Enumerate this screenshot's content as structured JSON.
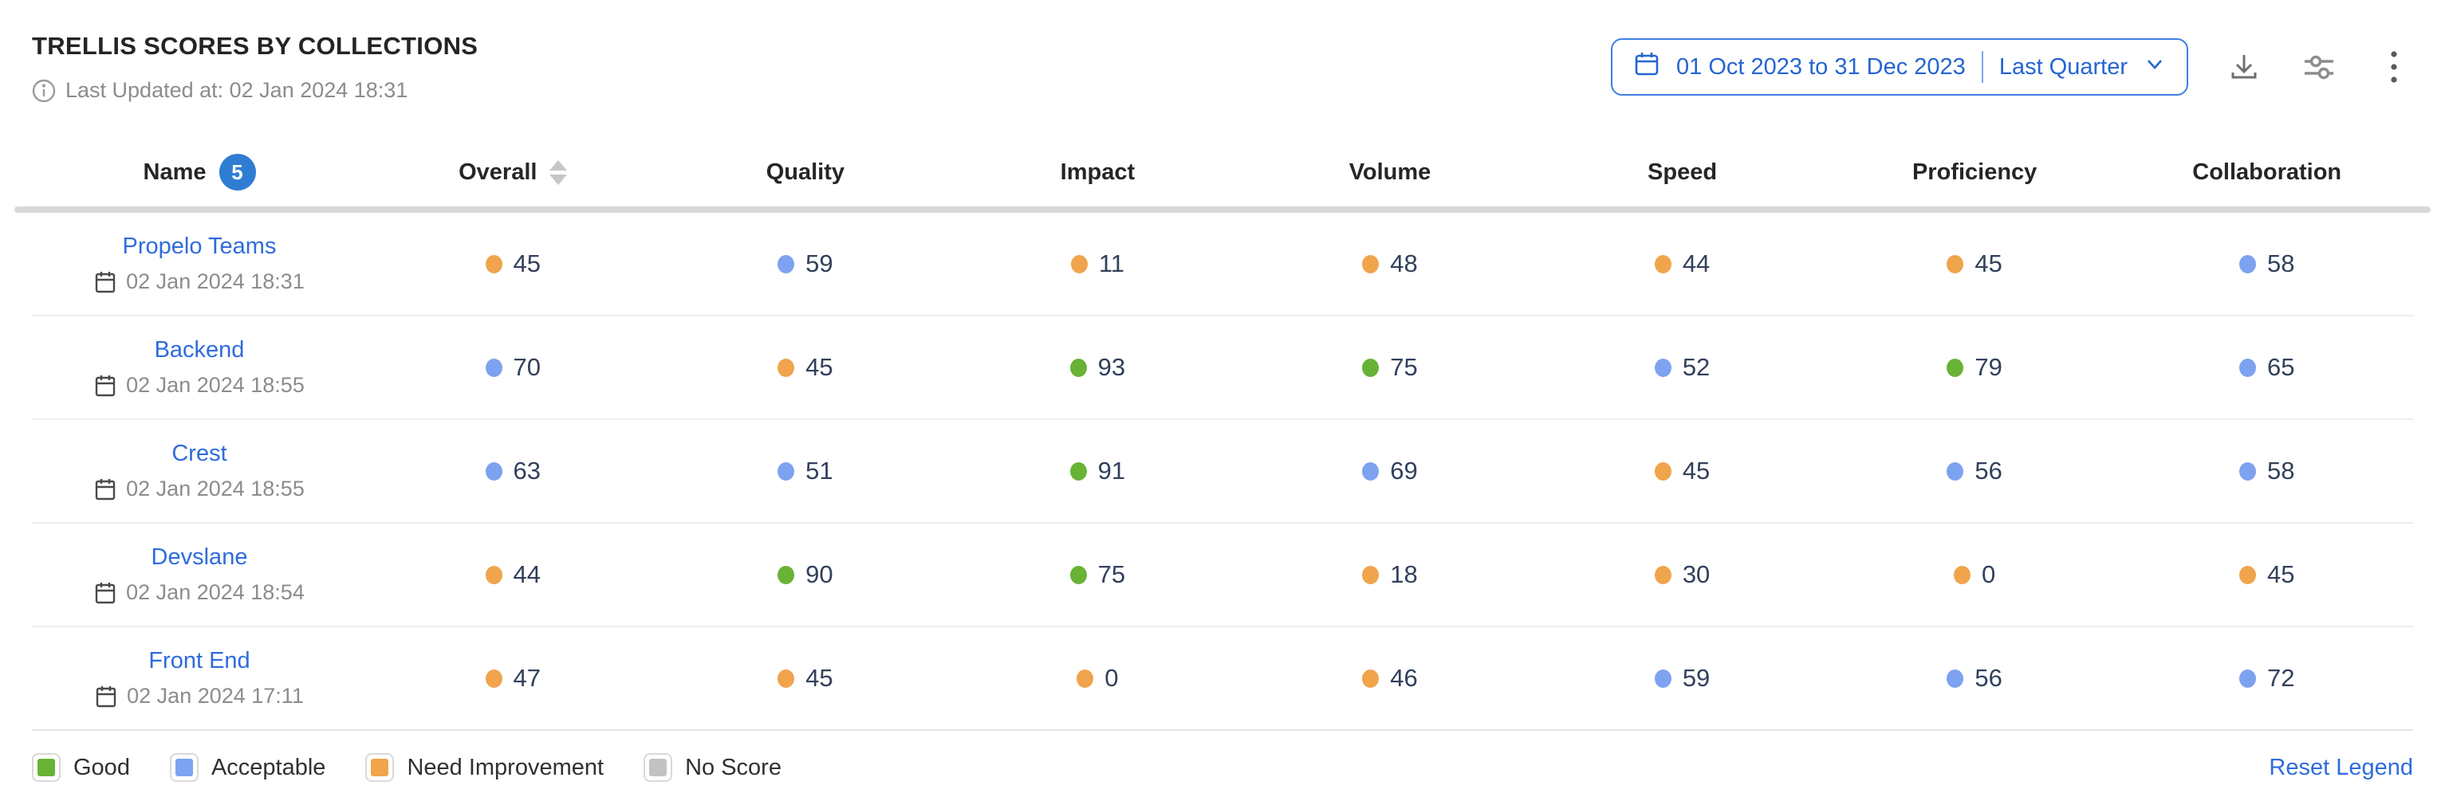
{
  "title": "TRELLIS SCORES BY COLLECTIONS",
  "last_updated": "Last Updated at: 02 Jan 2024 18:31",
  "toolbar": {
    "date_range": "01 Oct 2023 to 31 Dec 2023",
    "date_preset": "Last Quarter",
    "icons": [
      "calendar-icon",
      "chevron-down-icon",
      "download-icon",
      "sliders-icon",
      "kebab-menu-icon"
    ]
  },
  "table": {
    "columns": [
      "Name",
      "Overall",
      "Quality",
      "Impact",
      "Volume",
      "Speed",
      "Proficiency",
      "Collaboration"
    ],
    "name_count_badge": "5",
    "sorted_column": "Overall",
    "rows": [
      {
        "name": "Propelo Teams",
        "updated": "02 Jan 2024 18:31",
        "scores": [
          {
            "value": 45,
            "status": "need_improvement"
          },
          {
            "value": 59,
            "status": "acceptable"
          },
          {
            "value": 11,
            "status": "need_improvement"
          },
          {
            "value": 48,
            "status": "need_improvement"
          },
          {
            "value": 44,
            "status": "need_improvement"
          },
          {
            "value": 45,
            "status": "need_improvement"
          },
          {
            "value": 58,
            "status": "acceptable"
          }
        ]
      },
      {
        "name": "Backend",
        "updated": "02 Jan 2024 18:55",
        "scores": [
          {
            "value": 70,
            "status": "acceptable"
          },
          {
            "value": 45,
            "status": "need_improvement"
          },
          {
            "value": 93,
            "status": "good"
          },
          {
            "value": 75,
            "status": "good"
          },
          {
            "value": 52,
            "status": "acceptable"
          },
          {
            "value": 79,
            "status": "good"
          },
          {
            "value": 65,
            "status": "acceptable"
          }
        ]
      },
      {
        "name": "Crest",
        "updated": "02 Jan 2024 18:55",
        "scores": [
          {
            "value": 63,
            "status": "acceptable"
          },
          {
            "value": 51,
            "status": "acceptable"
          },
          {
            "value": 91,
            "status": "good"
          },
          {
            "value": 69,
            "status": "acceptable"
          },
          {
            "value": 45,
            "status": "need_improvement"
          },
          {
            "value": 56,
            "status": "acceptable"
          },
          {
            "value": 58,
            "status": "acceptable"
          }
        ]
      },
      {
        "name": "Devslane",
        "updated": "02 Jan 2024 18:54",
        "scores": [
          {
            "value": 44,
            "status": "need_improvement"
          },
          {
            "value": 90,
            "status": "good"
          },
          {
            "value": 75,
            "status": "good"
          },
          {
            "value": 18,
            "status": "need_improvement"
          },
          {
            "value": 30,
            "status": "need_improvement"
          },
          {
            "value": 0,
            "status": "need_improvement"
          },
          {
            "value": 45,
            "status": "need_improvement"
          }
        ]
      },
      {
        "name": "Front End",
        "updated": "02 Jan 2024 17:11",
        "scores": [
          {
            "value": 47,
            "status": "need_improvement"
          },
          {
            "value": 45,
            "status": "need_improvement"
          },
          {
            "value": 0,
            "status": "need_improvement"
          },
          {
            "value": 46,
            "status": "need_improvement"
          },
          {
            "value": 59,
            "status": "acceptable"
          },
          {
            "value": 56,
            "status": "acceptable"
          },
          {
            "value": 72,
            "status": "acceptable"
          }
        ]
      }
    ]
  },
  "legend": {
    "items": [
      {
        "label": "Good",
        "status": "good"
      },
      {
        "label": "Acceptable",
        "status": "acceptable"
      },
      {
        "label": "Need Improvement",
        "status": "need_improvement"
      },
      {
        "label": "No Score",
        "status": "no_score"
      }
    ],
    "reset_label": "Reset Legend"
  },
  "status_colors": {
    "good": "#68b235",
    "acceptable": "#7da2f0",
    "need_improvement": "#f0a44c",
    "no_score": "#c2c2c2"
  },
  "accent_colors": {
    "link_blue": "#2f6bdc",
    "badge_blue": "#2e7dd2",
    "date_button_blue": "#2565d2"
  }
}
